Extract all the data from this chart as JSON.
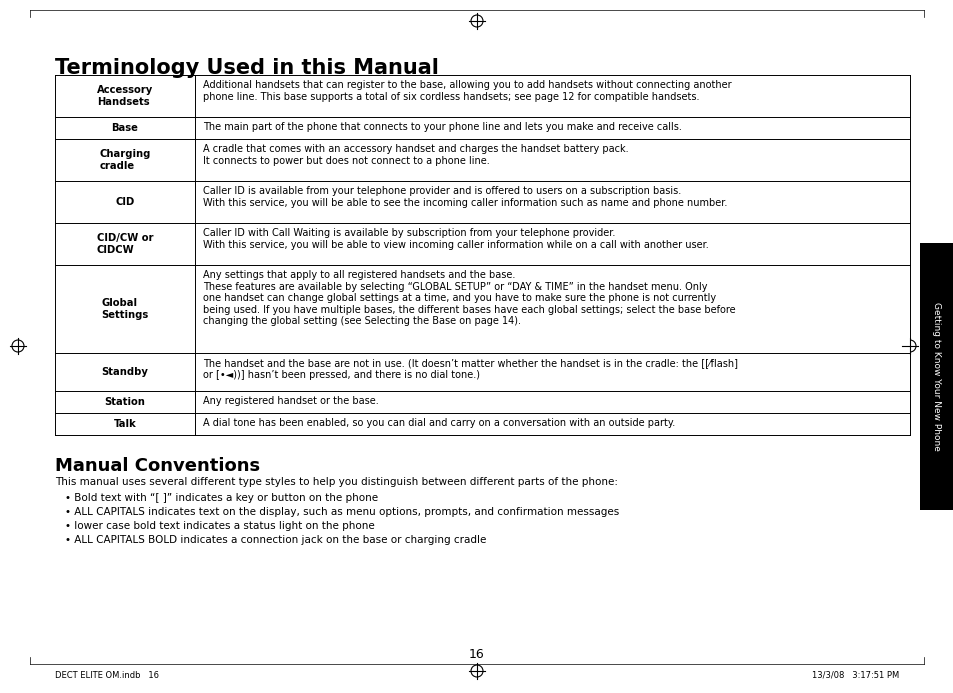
{
  "title": "Terminology Used in this Manual",
  "section2_title": "Manual Conventions",
  "section2_intro": "This manual uses several different type styles to help you distinguish between different parts of the phone:",
  "section2_bullets": [
    "• Bold text with “[ ]” indicates a key or button on the phone",
    "• ALL CAPITALS indicates text on the display, such as menu options, prompts, and confirmation messages",
    "• lower case bold text indicates a status light on the phone",
    "• ALL CAPITALS BOLD indicates a connection jack on the base or charging cradle"
  ],
  "table_rows": [
    {
      "term": "Accessory\nHandsets",
      "definition": "Additional handsets that can register to the base, allowing you to add handsets without connecting another\nphone line. This base supports a total of six cordless handsets; see page 12 for compatible handsets.",
      "bold_term": true,
      "tall": false
    },
    {
      "term": "Base",
      "definition": "The main part of the phone that connects to your phone line and lets you make and receive calls.",
      "bold_term": true,
      "tall": false
    },
    {
      "term": "Charging\ncradle",
      "definition": "A cradle that comes with an accessory handset and charges the handset battery pack.\nIt connects to power but does not connect to a phone line.",
      "bold_term": true,
      "tall": false
    },
    {
      "term": "CID",
      "definition": "Caller ID is available from your telephone provider and is offered to users on a subscription basis.\nWith this service, you will be able to see the incoming caller information such as name and phone number.",
      "bold_term": true,
      "tall": false
    },
    {
      "term": "CID/CW or\nCIDCW",
      "definition": "Caller ID with Call Waiting is available by subscription from your telephone provider.\nWith this service, you will be able to view incoming caller information while on a call with another user.",
      "bold_term": true,
      "tall": false
    },
    {
      "term": "Global\nSettings",
      "definition": "Any settings that apply to all registered handsets and the base.\nThese features are available by selecting “GLOBAL SETUP” or “DAY & TIME” in the handset menu. Only\none handset can change global settings at a time, and you have to make sure the phone is not currently\nbeing used. If you have multiple bases, the different bases have each global settings; select the base before\nchanging the global setting (see Selecting the Base on page 14).",
      "bold_term": true,
      "tall": true
    },
    {
      "term": "Standby",
      "definition": "The handset and the base are not in use. (It doesn’t matter whether the handset is in the cradle: the [[⁄flash]\nor [•◄))] hasn’t been pressed, and there is no dial tone.)",
      "bold_term": true,
      "tall": false
    },
    {
      "term": "Station",
      "definition": "Any registered handset or the base.",
      "bold_term": true,
      "tall": false
    },
    {
      "term": "Talk",
      "definition": "A dial tone has been enabled, so you can dial and carry on a conversation with an outside party.",
      "bold_term": true,
      "tall": false
    }
  ],
  "page_number": "16",
  "footer_left": "DECT ELITE OM.indb   16",
  "footer_right": "13/3/08   3:17:51 PM",
  "sidebar_text": "Getting to Know Your New Phone",
  "bg_color": "#ffffff",
  "table_border_color": "#000000",
  "sidebar_bg": "#000000",
  "sidebar_text_color": "#ffffff"
}
